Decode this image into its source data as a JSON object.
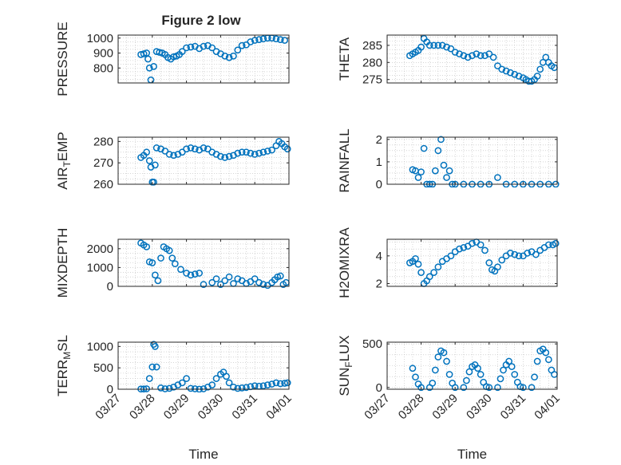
{
  "figure_title": "Figure 2 low",
  "x_axis_label": "Time",
  "x_ticks": [
    "03/27",
    "03/28",
    "03/29",
    "03/30",
    "03/31",
    "04/01"
  ],
  "colors": {
    "marker": "#0072BD",
    "axis": "#262626",
    "grid": "#BDBDBD"
  },
  "chart_data": [
    {
      "type": "scatter",
      "title": "Figure 2 low",
      "ylabel": "PRESSURE",
      "ylim": [
        700,
        1020
      ],
      "yticks": [
        800,
        900,
        1000
      ],
      "grid": true,
      "x": [
        "03/27 16:00",
        "03/27 18:00",
        "03/27 20:00",
        "03/27 21:00",
        "03/27 22:00",
        "03/27 23:00",
        "03/28 01:00",
        "03/28 03:00",
        "03/28 05:00",
        "03/28 07:00",
        "03/28 09:00",
        "03/28 11:00",
        "03/28 13:00",
        "03/28 15:00",
        "03/28 17:00",
        "03/28 19:00",
        "03/28 21:00",
        "03/29 00:00",
        "03/29 03:00",
        "03/29 06:00",
        "03/29 09:00",
        "03/29 12:00",
        "03/29 15:00",
        "03/29 18:00",
        "03/29 21:00",
        "03/30 00:00",
        "03/30 03:00",
        "03/30 06:00",
        "03/30 09:00",
        "03/30 12:00",
        "03/30 15:00",
        "03/30 18:00",
        "03/30 21:00",
        "03/31 00:00",
        "03/31 03:00",
        "03/31 06:00",
        "03/31 09:00",
        "03/31 12:00",
        "03/31 15:00",
        "03/31 18:00",
        "03/31 21:00"
      ],
      "y": [
        890,
        895,
        900,
        860,
        800,
        720,
        810,
        910,
        905,
        900,
        890,
        870,
        860,
        875,
        880,
        890,
        910,
        935,
        940,
        945,
        930,
        945,
        950,
        935,
        910,
        895,
        880,
        870,
        880,
        920,
        950,
        955,
        975,
        985,
        990,
        995,
        1000,
        1000,
        995,
        990,
        985
      ]
    },
    {
      "type": "scatter",
      "ylabel": "THETA",
      "ylim": [
        274,
        288
      ],
      "yticks": [
        275,
        280,
        285
      ],
      "grid": true,
      "x": [
        "03/27 16:00",
        "03/27 18:00",
        "03/27 20:00",
        "03/27 22:00",
        "03/28 00:00",
        "03/28 02:00",
        "03/28 04:00",
        "03/28 06:00",
        "03/28 09:00",
        "03/28 12:00",
        "03/28 15:00",
        "03/28 18:00",
        "03/28 21:00",
        "03/29 00:00",
        "03/29 03:00",
        "03/29 06:00",
        "03/29 09:00",
        "03/29 12:00",
        "03/29 15:00",
        "03/29 18:00",
        "03/29 21:00",
        "03/30 00:00",
        "03/30 03:00",
        "03/30 06:00",
        "03/30 09:00",
        "03/30 12:00",
        "03/30 15:00",
        "03/30 18:00",
        "03/30 21:00",
        "03/31 00:00",
        "03/31 02:00",
        "03/31 04:00",
        "03/31 06:00",
        "03/31 08:00",
        "03/31 10:00",
        "03/31 12:00",
        "03/31 14:00",
        "03/31 16:00",
        "03/31 18:00",
        "03/31 20:00",
        "03/31 22:00"
      ],
      "y": [
        282,
        282.5,
        283,
        283.5,
        284.5,
        287,
        286,
        285,
        285,
        285,
        285,
        284.5,
        284,
        283,
        282.5,
        282,
        281.5,
        282,
        282.5,
        282,
        282,
        282.5,
        281.5,
        279,
        278,
        277.5,
        277,
        276.5,
        276,
        275.5,
        275,
        274.5,
        274.5,
        275,
        276,
        278,
        280,
        281.5,
        280,
        279,
        278.5
      ]
    },
    {
      "type": "scatter",
      "ylabel": "AIR_TEMP",
      "ylim": [
        260,
        282
      ],
      "yticks": [
        260,
        270,
        280
      ],
      "grid": true,
      "x": [
        "03/27 16:00",
        "03/27 18:00",
        "03/27 20:00",
        "03/27 22:00",
        "03/27 23:00",
        "03/28 00:00",
        "03/28 01:00",
        "03/28 02:00",
        "03/28 03:00",
        "03/28 06:00",
        "03/28 09:00",
        "03/28 12:00",
        "03/28 15:00",
        "03/28 18:00",
        "03/28 21:00",
        "03/29 00:00",
        "03/29 03:00",
        "03/29 06:00",
        "03/29 09:00",
        "03/29 12:00",
        "03/29 15:00",
        "03/29 18:00",
        "03/29 21:00",
        "03/30 00:00",
        "03/30 03:00",
        "03/30 06:00",
        "03/30 09:00",
        "03/30 12:00",
        "03/30 15:00",
        "03/30 18:00",
        "03/30 21:00",
        "03/31 00:00",
        "03/31 03:00",
        "03/31 06:00",
        "03/31 09:00",
        "03/31 12:00",
        "03/31 15:00",
        "03/31 17:00",
        "03/31 19:00",
        "03/31 21:00",
        "03/31 23:00"
      ],
      "y": [
        272.5,
        273.5,
        275,
        271,
        268,
        261,
        261,
        269,
        277,
        276.5,
        275.5,
        274,
        273.5,
        274,
        275,
        276.5,
        277,
        276.5,
        276,
        277,
        276.5,
        275,
        274,
        273,
        272.5,
        273,
        273.5,
        274.5,
        275,
        275,
        274.5,
        274,
        274.5,
        275,
        275.5,
        276,
        278,
        280,
        279,
        277.5,
        276.5
      ]
    },
    {
      "type": "scatter",
      "ylabel": "RAINFALL",
      "ylim": [
        0,
        2.1
      ],
      "yticks": [
        0,
        1,
        2
      ],
      "grid": true,
      "x": [
        "03/27 18:00",
        "03/27 20:00",
        "03/27 22:00",
        "03/28 00:00",
        "03/28 02:00",
        "03/28 04:00",
        "03/28 06:00",
        "03/28 08:00",
        "03/28 10:00",
        "03/28 12:00",
        "03/28 14:00",
        "03/28 16:00",
        "03/28 18:00",
        "03/28 20:00",
        "03/28 22:00",
        "03/29 00:00",
        "03/29 06:00",
        "03/29 12:00",
        "03/29 18:00",
        "03/30 00:00",
        "03/30 06:00",
        "03/30 12:00",
        "03/30 18:00",
        "03/31 00:00",
        "03/31 06:00",
        "03/31 12:00",
        "03/31 18:00",
        "03/31 23:00"
      ],
      "y": [
        0.65,
        0.6,
        0.3,
        0.55,
        1.6,
        0,
        0,
        0,
        0.6,
        1.5,
        2.0,
        0.85,
        0.3,
        0.6,
        0,
        0,
        0,
        0,
        0,
        0,
        0.3,
        0,
        0,
        0,
        0,
        0,
        0,
        0
      ]
    },
    {
      "type": "scatter",
      "ylabel": "MIXDEPTH",
      "ylim": [
        0,
        2500
      ],
      "yticks": [
        0,
        1000,
        2000
      ],
      "grid": true,
      "x": [
        "03/27 16:00",
        "03/27 18:00",
        "03/27 20:00",
        "03/27 22:00",
        "03/28 00:00",
        "03/28 02:00",
        "03/28 04:00",
        "03/28 06:00",
        "03/28 08:00",
        "03/28 10:00",
        "03/28 12:00",
        "03/28 14:00",
        "03/28 16:00",
        "03/28 20:00",
        "03/29 00:00",
        "03/29 03:00",
        "03/29 06:00",
        "03/29 09:00",
        "03/29 12:00",
        "03/29 18:00",
        "03/29 21:00",
        "03/30 00:00",
        "03/30 03:00",
        "03/30 06:00",
        "03/30 09:00",
        "03/30 12:00",
        "03/30 15:00",
        "03/30 18:00",
        "03/30 21:00",
        "03/31 00:00",
        "03/31 03:00",
        "03/31 06:00",
        "03/31 09:00",
        "03/31 12:00",
        "03/31 14:00",
        "03/31 16:00",
        "03/31 18:00",
        "03/31 20:00",
        "03/31 22:00"
      ],
      "y": [
        2300,
        2200,
        2100,
        1300,
        1250,
        600,
        300,
        1500,
        2100,
        2000,
        1900,
        1500,
        1200,
        900,
        700,
        600,
        650,
        700,
        100,
        200,
        400,
        100,
        300,
        500,
        150,
        400,
        300,
        150,
        250,
        400,
        200,
        100,
        50,
        200,
        350,
        500,
        550,
        100,
        200
      ]
    },
    {
      "type": "scatter",
      "ylabel": "H2OMIXRA",
      "ylim": [
        1.8,
        5.2
      ],
      "yticks": [
        2,
        4
      ],
      "grid": true,
      "x": [
        "03/27 16:00",
        "03/27 18:00",
        "03/27 20:00",
        "03/27 22:00",
        "03/28 00:00",
        "03/28 02:00",
        "03/28 04:00",
        "03/28 06:00",
        "03/28 09:00",
        "03/28 12:00",
        "03/28 15:00",
        "03/28 18:00",
        "03/28 21:00",
        "03/29 00:00",
        "03/29 03:00",
        "03/29 06:00",
        "03/29 09:00",
        "03/29 12:00",
        "03/29 15:00",
        "03/29 18:00",
        "03/29 21:00",
        "03/30 00:00",
        "03/30 02:00",
        "03/30 04:00",
        "03/30 06:00",
        "03/30 09:00",
        "03/30 12:00",
        "03/30 15:00",
        "03/30 18:00",
        "03/30 21:00",
        "03/31 00:00",
        "03/31 03:00",
        "03/31 06:00",
        "03/31 09:00",
        "03/31 12:00",
        "03/31 15:00",
        "03/31 18:00",
        "03/31 21:00",
        "03/31 23:00"
      ],
      "y": [
        3.5,
        3.6,
        3.8,
        3.4,
        2.8,
        2.0,
        2.2,
        2.5,
        2.8,
        3.2,
        3.6,
        3.8,
        4.0,
        4.3,
        4.5,
        4.6,
        4.7,
        4.9,
        5.0,
        4.8,
        4.4,
        3.5,
        3.0,
        2.9,
        3.2,
        3.7,
        4.0,
        4.2,
        4.1,
        4.0,
        4.0,
        4.2,
        4.3,
        4.1,
        4.4,
        4.6,
        4.8,
        4.8,
        4.9
      ]
    },
    {
      "type": "scatter",
      "ylabel": "TERR_MSL",
      "ylim": [
        0,
        1100
      ],
      "yticks": [
        0,
        500,
        1000
      ],
      "grid": true,
      "x": [
        "03/27 16:00",
        "03/27 18:00",
        "03/27 20:00",
        "03/27 22:00",
        "03/28 00:00",
        "03/28 01:00",
        "03/28 02:00",
        "03/28 03:00",
        "03/28 06:00",
        "03/28 09:00",
        "03/28 12:00",
        "03/28 15:00",
        "03/28 18:00",
        "03/28 21:00",
        "03/29 00:00",
        "03/29 03:00",
        "03/29 06:00",
        "03/29 09:00",
        "03/29 12:00",
        "03/29 15:00",
        "03/29 18:00",
        "03/29 21:00",
        "03/30 00:00",
        "03/30 02:00",
        "03/30 04:00",
        "03/30 06:00",
        "03/30 09:00",
        "03/30 12:00",
        "03/30 15:00",
        "03/30 18:00",
        "03/30 21:00",
        "03/31 00:00",
        "03/31 03:00",
        "03/31 06:00",
        "03/31 09:00",
        "03/31 12:00",
        "03/31 15:00",
        "03/31 18:00",
        "03/31 21:00",
        "03/31 23:00"
      ],
      "y": [
        5,
        5,
        10,
        250,
        520,
        1050,
        1000,
        520,
        30,
        10,
        20,
        50,
        100,
        150,
        250,
        20,
        10,
        0,
        10,
        50,
        100,
        250,
        350,
        400,
        300,
        150,
        50,
        20,
        30,
        40,
        60,
        80,
        70,
        80,
        100,
        120,
        150,
        130,
        140,
        150
      ]
    },
    {
      "type": "scatter",
      "ylabel": "SUN_FLUX",
      "ylim": [
        -20,
        520
      ],
      "yticks": [
        0,
        500
      ],
      "grid": true,
      "x": [
        "03/27 18:00",
        "03/27 20:00",
        "03/27 22:00",
        "03/28 00:00",
        "03/28 06:00",
        "03/28 08:00",
        "03/28 10:00",
        "03/28 12:00",
        "03/28 14:00",
        "03/28 16:00",
        "03/28 18:00",
        "03/28 20:00",
        "03/28 22:00",
        "03/29 00:00",
        "03/29 06:00",
        "03/29 08:00",
        "03/29 10:00",
        "03/29 12:00",
        "03/29 14:00",
        "03/29 16:00",
        "03/29 18:00",
        "03/29 20:00",
        "03/29 22:00",
        "03/30 00:00",
        "03/30 06:00",
        "03/30 08:00",
        "03/30 10:00",
        "03/30 12:00",
        "03/30 14:00",
        "03/30 16:00",
        "03/30 18:00",
        "03/30 20:00",
        "03/30 22:00",
        "03/31 00:00",
        "03/31 06:00",
        "03/31 08:00",
        "03/31 10:00",
        "03/31 12:00",
        "03/31 14:00",
        "03/31 16:00",
        "03/31 18:00",
        "03/31 20:00",
        "03/31 22:00"
      ],
      "y": [
        220,
        120,
        40,
        0,
        0,
        50,
        200,
        350,
        420,
        400,
        300,
        150,
        50,
        0,
        0,
        80,
        180,
        240,
        260,
        220,
        150,
        60,
        10,
        0,
        0,
        100,
        200,
        260,
        300,
        240,
        150,
        60,
        10,
        0,
        0,
        120,
        300,
        420,
        440,
        400,
        320,
        200,
        150
      ]
    }
  ]
}
